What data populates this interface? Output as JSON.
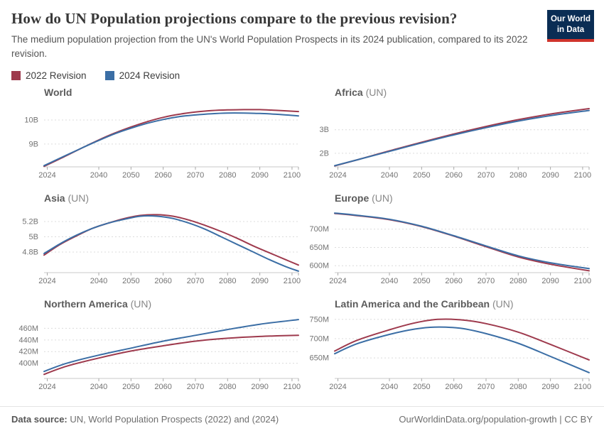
{
  "header": {
    "title": "How do UN Population projections compare to the previous revision?",
    "subtitle": "The medium population projection from the UN's World Population Prospects in its 2024 publication, compared to its 2022 revision.",
    "logo": {
      "line1": "Our World",
      "line2": "in Data"
    }
  },
  "colors": {
    "revision_2022": "#9e3a4d",
    "revision_2024": "#3b6ea5",
    "logo_bg": "#0a2d54",
    "logo_accent": "#d0342c",
    "gridline": "#dcdcdc",
    "axis": "#c8c8c8",
    "tick": "#a8a8a8",
    "tick_label": "#737373"
  },
  "legend": [
    {
      "label": "2022 Revision",
      "color": "#9e3a4d"
    },
    {
      "label": "2024 Revision",
      "color": "#3b6ea5"
    }
  ],
  "footer": {
    "source_label": "Data source:",
    "source_text": " UN, World Population Prospects (2022) and (2024)",
    "link": "OurWorldinData.org/population-growth | CC BY"
  },
  "chart_data": [
    {
      "type": "line",
      "title": "World",
      "title_suffix": "",
      "unit": "billions",
      "xlim": [
        2023,
        2102
      ],
      "ylim": [
        8.05,
        10.62
      ],
      "xticks": [
        2024,
        2040,
        2050,
        2060,
        2070,
        2080,
        2090,
        2100
      ],
      "yticks": [
        {
          "v": 9,
          "label": "9B"
        },
        {
          "v": 10,
          "label": "10B"
        }
      ],
      "series": [
        {
          "name": "2022 Revision",
          "color": "#9e3a4d",
          "points": [
            [
              2023,
              8.07
            ],
            [
              2026,
              8.26
            ],
            [
              2030,
              8.52
            ],
            [
              2035,
              8.85
            ],
            [
              2040,
              9.17
            ],
            [
              2045,
              9.46
            ],
            [
              2050,
              9.71
            ],
            [
              2055,
              9.93
            ],
            [
              2060,
              10.11
            ],
            [
              2065,
              10.24
            ],
            [
              2070,
              10.33
            ],
            [
              2075,
              10.39
            ],
            [
              2080,
              10.42
            ],
            [
              2085,
              10.43
            ],
            [
              2090,
              10.43
            ],
            [
              2095,
              10.4
            ],
            [
              2102,
              10.35
            ]
          ]
        },
        {
          "name": "2024 Revision",
          "color": "#3b6ea5",
          "points": [
            [
              2023,
              8.1
            ],
            [
              2026,
              8.29
            ],
            [
              2030,
              8.54
            ],
            [
              2035,
              8.85
            ],
            [
              2040,
              9.15
            ],
            [
              2045,
              9.43
            ],
            [
              2050,
              9.66
            ],
            [
              2055,
              9.86
            ],
            [
              2060,
              10.02
            ],
            [
              2065,
              10.14
            ],
            [
              2070,
              10.21
            ],
            [
              2075,
              10.26
            ],
            [
              2080,
              10.29
            ],
            [
              2085,
              10.29
            ],
            [
              2090,
              10.27
            ],
            [
              2095,
              10.24
            ],
            [
              2102,
              10.17
            ]
          ]
        }
      ]
    },
    {
      "type": "line",
      "title": "Africa",
      "title_suffix": " (UN)",
      "unit": "billions",
      "xlim": [
        2023,
        2102
      ],
      "ylim": [
        1.42,
        4.05
      ],
      "xticks": [
        2024,
        2040,
        2050,
        2060,
        2070,
        2080,
        2090,
        2100
      ],
      "yticks": [
        {
          "v": 2,
          "label": "2B"
        },
        {
          "v": 3,
          "label": "3B"
        }
      ],
      "series": [
        {
          "name": "2022 Revision",
          "color": "#9e3a4d",
          "points": [
            [
              2023,
              1.46
            ],
            [
              2030,
              1.72
            ],
            [
              2040,
              2.1
            ],
            [
              2050,
              2.47
            ],
            [
              2060,
              2.82
            ],
            [
              2070,
              3.14
            ],
            [
              2080,
              3.43
            ],
            [
              2090,
              3.67
            ],
            [
              2102,
              3.9
            ]
          ]
        },
        {
          "name": "2024 Revision",
          "color": "#3b6ea5",
          "points": [
            [
              2023,
              1.47
            ],
            [
              2030,
              1.72
            ],
            [
              2040,
              2.08
            ],
            [
              2050,
              2.44
            ],
            [
              2060,
              2.78
            ],
            [
              2070,
              3.09
            ],
            [
              2080,
              3.37
            ],
            [
              2090,
              3.6
            ],
            [
              2102,
              3.82
            ]
          ]
        }
      ]
    },
    {
      "type": "line",
      "title": "Asia",
      "title_suffix": " (UN)",
      "unit": "billions",
      "xlim": [
        2023,
        2102
      ],
      "ylim": [
        4.53,
        5.34
      ],
      "xticks": [
        2024,
        2040,
        2050,
        2060,
        2070,
        2080,
        2090,
        2100
      ],
      "yticks": [
        {
          "v": 4.8,
          "label": "4.8B"
        },
        {
          "v": 5,
          "label": "5B"
        },
        {
          "v": 5.2,
          "label": "5.2B"
        }
      ],
      "series": [
        {
          "name": "2022 Revision",
          "color": "#9e3a4d",
          "points": [
            [
              2023,
              4.76
            ],
            [
              2028,
              4.9
            ],
            [
              2033,
              5.01
            ],
            [
              2038,
              5.11
            ],
            [
              2043,
              5.18
            ],
            [
              2048,
              5.24
            ],
            [
              2053,
              5.28
            ],
            [
              2058,
              5.29
            ],
            [
              2063,
              5.27
            ],
            [
              2068,
              5.22
            ],
            [
              2073,
              5.15
            ],
            [
              2078,
              5.07
            ],
            [
              2083,
              4.98
            ],
            [
              2088,
              4.88
            ],
            [
              2093,
              4.79
            ],
            [
              2098,
              4.7
            ],
            [
              2102,
              4.63
            ]
          ]
        },
        {
          "name": "2024 Revision",
          "color": "#3b6ea5",
          "points": [
            [
              2023,
              4.78
            ],
            [
              2028,
              4.91
            ],
            [
              2033,
              5.02
            ],
            [
              2038,
              5.11
            ],
            [
              2043,
              5.18
            ],
            [
              2048,
              5.23
            ],
            [
              2053,
              5.27
            ],
            [
              2058,
              5.27
            ],
            [
              2063,
              5.24
            ],
            [
              2068,
              5.18
            ],
            [
              2073,
              5.1
            ],
            [
              2078,
              5.0
            ],
            [
              2083,
              4.9
            ],
            [
              2088,
              4.8
            ],
            [
              2093,
              4.7
            ],
            [
              2098,
              4.61
            ],
            [
              2102,
              4.55
            ]
          ]
        }
      ]
    },
    {
      "type": "line",
      "title": "Europe",
      "title_suffix": " (UN)",
      "unit": "millions",
      "xlim": [
        2023,
        2102
      ],
      "ylim": [
        581,
        750
      ],
      "xticks": [
        2024,
        2040,
        2050,
        2060,
        2070,
        2080,
        2090,
        2100
      ],
      "yticks": [
        {
          "v": 600,
          "label": "600M"
        },
        {
          "v": 650,
          "label": "650M"
        },
        {
          "v": 700,
          "label": "700M"
        }
      ],
      "series": [
        {
          "name": "2022 Revision",
          "color": "#9e3a4d",
          "points": [
            [
              2023,
              743
            ],
            [
              2030,
              737
            ],
            [
              2040,
              726
            ],
            [
              2050,
              707
            ],
            [
              2060,
              681
            ],
            [
              2070,
              652
            ],
            [
              2080,
              624
            ],
            [
              2090,
              604
            ],
            [
              2102,
              586
            ]
          ]
        },
        {
          "name": "2024 Revision",
          "color": "#3b6ea5",
          "points": [
            [
              2023,
              744
            ],
            [
              2030,
              738
            ],
            [
              2040,
              727
            ],
            [
              2050,
              708
            ],
            [
              2060,
              682
            ],
            [
              2070,
              654
            ],
            [
              2080,
              627
            ],
            [
              2090,
              608
            ],
            [
              2102,
              592
            ]
          ]
        }
      ]
    },
    {
      "type": "line",
      "title": "Northern America",
      "title_suffix": " (UN)",
      "unit": "millions",
      "xlim": [
        2023,
        2102
      ],
      "ylim": [
        374,
        480
      ],
      "xticks": [
        2024,
        2040,
        2050,
        2060,
        2070,
        2080,
        2090,
        2100
      ],
      "yticks": [
        {
          "v": 400,
          "label": "400M"
        },
        {
          "v": 420,
          "label": "420M"
        },
        {
          "v": 440,
          "label": "440M"
        },
        {
          "v": 460,
          "label": "460M"
        }
      ],
      "series": [
        {
          "name": "2022 Revision",
          "color": "#9e3a4d",
          "points": [
            [
              2023,
              381
            ],
            [
              2030,
              395
            ],
            [
              2040,
              409
            ],
            [
              2050,
              421
            ],
            [
              2060,
              430
            ],
            [
              2070,
              438
            ],
            [
              2080,
              443
            ],
            [
              2090,
              446
            ],
            [
              2102,
              448
            ]
          ]
        },
        {
          "name": "2024 Revision",
          "color": "#3b6ea5",
          "points": [
            [
              2023,
              386
            ],
            [
              2030,
              400
            ],
            [
              2040,
              414
            ],
            [
              2050,
              426
            ],
            [
              2060,
              438
            ],
            [
              2070,
              448
            ],
            [
              2080,
              458
            ],
            [
              2090,
              467
            ],
            [
              2102,
              475
            ]
          ]
        }
      ]
    },
    {
      "type": "line",
      "title": "Latin America and the Caribbean",
      "title_suffix": " (UN)",
      "unit": "millions",
      "xlim": [
        2023,
        2102
      ],
      "ylim": [
        597,
        757
      ],
      "xticks": [
        2024,
        2040,
        2050,
        2060,
        2070,
        2080,
        2090,
        2100
      ],
      "yticks": [
        {
          "v": 650,
          "label": "650M"
        },
        {
          "v": 700,
          "label": "700M"
        },
        {
          "v": 750,
          "label": "750M"
        }
      ],
      "series": [
        {
          "name": "2022 Revision",
          "color": "#9e3a4d",
          "points": [
            [
              2023,
              668
            ],
            [
              2030,
              696
            ],
            [
              2040,
              723
            ],
            [
              2048,
              741
            ],
            [
              2055,
              750
            ],
            [
              2062,
              749
            ],
            [
              2070,
              739
            ],
            [
              2080,
              717
            ],
            [
              2090,
              685
            ],
            [
              2102,
              645
            ]
          ]
        },
        {
          "name": "2024 Revision",
          "color": "#3b6ea5",
          "points": [
            [
              2023,
              661
            ],
            [
              2030,
              687
            ],
            [
              2040,
              711
            ],
            [
              2048,
              725
            ],
            [
              2054,
              730
            ],
            [
              2062,
              727
            ],
            [
              2070,
              713
            ],
            [
              2080,
              688
            ],
            [
              2090,
              654
            ],
            [
              2102,
              612
            ]
          ]
        }
      ]
    }
  ]
}
